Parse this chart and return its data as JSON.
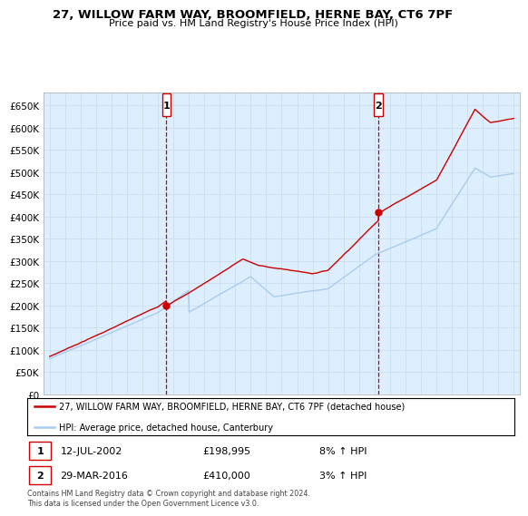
{
  "title": "27, WILLOW FARM WAY, BROOMFIELD, HERNE BAY, CT6 7PF",
  "subtitle": "Price paid vs. HM Land Registry's House Price Index (HPI)",
  "ylim": [
    0,
    680000
  ],
  "yticks": [
    0,
    50000,
    100000,
    150000,
    200000,
    250000,
    300000,
    350000,
    400000,
    450000,
    500000,
    550000,
    600000,
    650000
  ],
  "x_start_year": 1995,
  "x_end_year": 2025,
  "sale1_year": 2002.54,
  "sale1_price": 198995,
  "sale2_year": 2016.24,
  "sale2_price": 410000,
  "legend_line1": "27, WILLOW FARM WAY, BROOMFIELD, HERNE BAY, CT6 7PF (detached house)",
  "legend_line2": "HPI: Average price, detached house, Canterbury",
  "annotation1_date": "12-JUL-2002",
  "annotation1_price": "£198,995",
  "annotation1_hpi": "8% ↑ HPI",
  "annotation2_date": "29-MAR-2016",
  "annotation2_price": "£410,000",
  "annotation2_hpi": "3% ↑ HPI",
  "footer": "Contains HM Land Registry data © Crown copyright and database right 2024.\nThis data is licensed under the Open Government Licence v3.0.",
  "line_color_red": "#cc0000",
  "line_color_blue": "#aaccee",
  "grid_color": "#ccddee",
  "background_color": "#ddeeff"
}
